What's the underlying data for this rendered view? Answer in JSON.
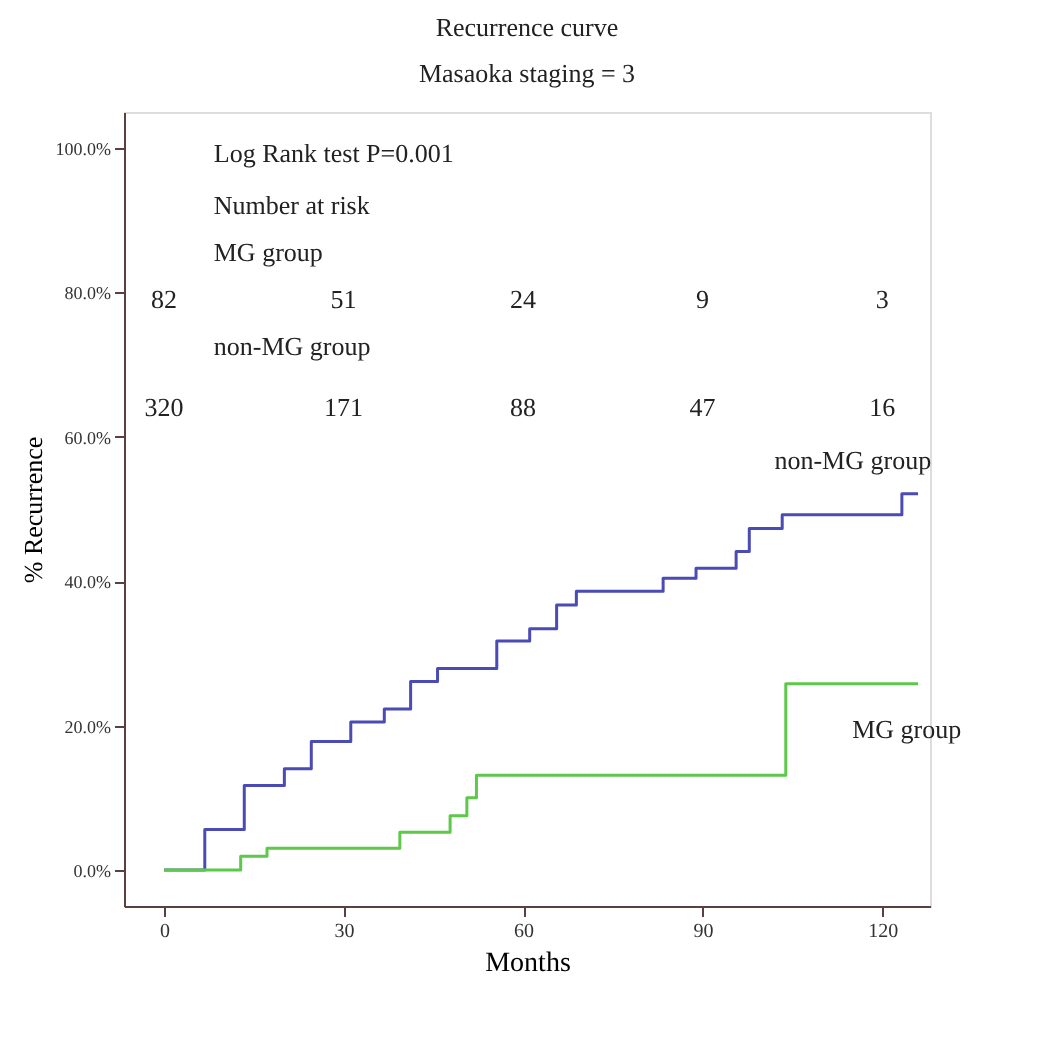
{
  "chart_data": {
    "type": "step",
    "title": "Recurrence curve",
    "subtitle": "Masaoka staging = 3",
    "xlabel": "Months",
    "ylabel": "% Recurrence",
    "xlim": [
      -6.7,
      128
    ],
    "xticks": [
      0,
      30,
      60,
      90,
      120
    ],
    "ylim": [
      -5,
      105
    ],
    "yticks": [
      {
        "value": 0,
        "label": "0.0%"
      },
      {
        "value": 20,
        "label": "20.0%"
      },
      {
        "value": 40,
        "label": "40.0%"
      },
      {
        "value": 60,
        "label": "60.0%"
      },
      {
        "value": 80,
        "label": "80.0%"
      },
      {
        "value": 100,
        "label": "100.0%"
      }
    ],
    "grid": false,
    "legend": false,
    "marker": "none",
    "line_style": "solid",
    "series": [
      {
        "name": "non-MG group",
        "color": "#4b4bb5",
        "x": [
          0,
          6.8,
          13.4,
          20.1,
          24.6,
          31.2,
          36.8,
          41.2,
          45.7,
          55.6,
          61.1,
          65.6,
          68.9,
          83.4,
          88.9,
          95.6,
          97.8,
          103.3,
          123.3,
          126
        ],
        "values": [
          0,
          5.6,
          11.7,
          14,
          17.8,
          20.5,
          22.3,
          26.1,
          27.9,
          31.7,
          33.4,
          36.7,
          38.6,
          40.4,
          41.8,
          44.1,
          47.3,
          49.2,
          52.1,
          52.1
        ]
      },
      {
        "name": "MG group",
        "color": "#5dc84a",
        "x": [
          0,
          12.8,
          17.2,
          39.4,
          47.8,
          50.6,
          52.2,
          103.9,
          126
        ],
        "values": [
          0,
          1.9,
          3,
          5.2,
          7.5,
          10,
          13.1,
          25.8,
          25.8
        ]
      }
    ],
    "annotations": [
      "Log Rank test  P=0.001",
      "Number at risk",
      "MG group",
      "82",
      "51",
      "24",
      "9",
      "3",
      "non-MG group",
      "320",
      "171",
      "88",
      "47",
      "16"
    ]
  }
}
